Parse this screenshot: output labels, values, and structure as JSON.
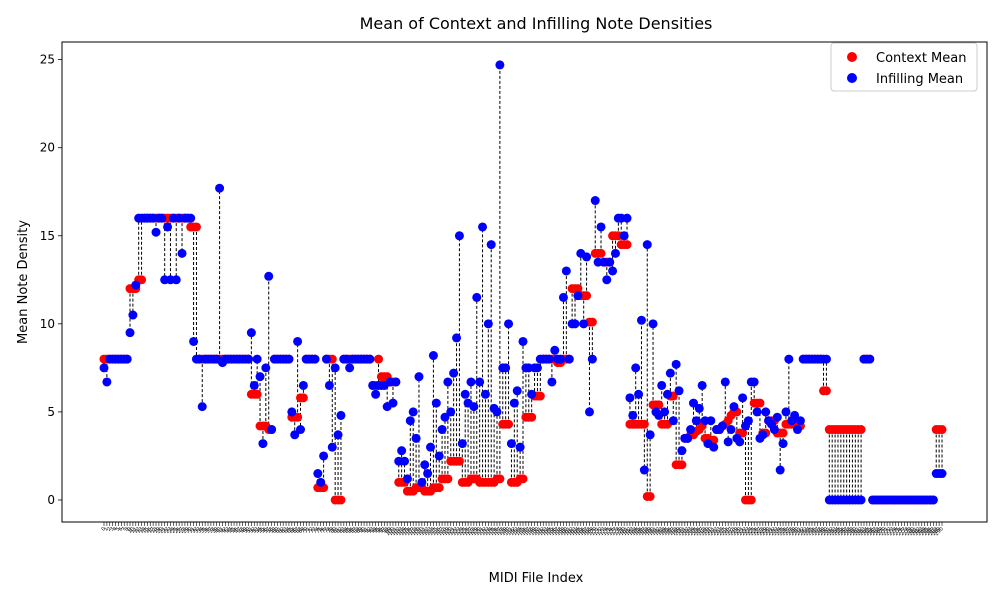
{
  "chart_data": {
    "type": "scatter",
    "title": "Mean of Context and Infilling Note Densities",
    "xlabel": "MIDI File Index",
    "ylabel": "Mean Note Density",
    "ylim": [
      -1.25,
      26.0
    ],
    "yticks": [
      0,
      5,
      10,
      15,
      20,
      25
    ],
    "legend_position": "top-right",
    "colors": {
      "context": "#ff0000",
      "infilling": "#0000ff",
      "connector": "#000000"
    },
    "series": [
      {
        "name": "Context Mean",
        "color": "#ff0000",
        "values": [
          8.0,
          8.0,
          8.0,
          8.0,
          8.0,
          8.0,
          8.0,
          8.0,
          8.0,
          12.0,
          12.0,
          12.0,
          12.5,
          12.5,
          16.0,
          16.0,
          16.0,
          16.0,
          16.0,
          16.0,
          16.0,
          16.0,
          16.0,
          16.0,
          16.0,
          16.0,
          16.0,
          16.0,
          16.0,
          16.0,
          15.5,
          15.5,
          15.5,
          8.0,
          8.0,
          8.0,
          8.0,
          8.0,
          8.0,
          8.0,
          8.0,
          8.0,
          8.0,
          8.0,
          8.0,
          8.0,
          8.0,
          8.0,
          8.0,
          8.0,
          8.0,
          6.0,
          6.0,
          6.0,
          4.2,
          4.2,
          4.2,
          4.0,
          4.0,
          8.0,
          8.0,
          8.0,
          8.0,
          8.0,
          8.0,
          4.7,
          4.7,
          4.7,
          5.8,
          5.8,
          8.0,
          8.0,
          8.0,
          8.0,
          0.7,
          0.7,
          0.7,
          8.0,
          8.0,
          8.0,
          0.0,
          0.0,
          0.0,
          8.0,
          8.0,
          8.0,
          8.0,
          8.0,
          8.0,
          8.0,
          8.0,
          8.0,
          8.0,
          6.5,
          6.5,
          8.0,
          7.0,
          7.0,
          7.0,
          6.7,
          6.7,
          6.7,
          1.0,
          1.0,
          1.0,
          0.5,
          0.5,
          0.5,
          0.7,
          0.7,
          0.7,
          0.5,
          0.5,
          0.5,
          0.7,
          0.7,
          0.7,
          1.2,
          1.2,
          1.2,
          2.2,
          2.2,
          2.2,
          2.2,
          1.0,
          1.0,
          1.0,
          1.2,
          1.2,
          1.2,
          1.0,
          1.0,
          1.0,
          1.0,
          1.0,
          1.0,
          1.2,
          1.2,
          4.3,
          4.3,
          4.3,
          1.0,
          1.0,
          1.0,
          1.2,
          1.2,
          4.7,
          4.7,
          4.7,
          5.9,
          5.9,
          5.9,
          8.0,
          8.0,
          8.0,
          8.0,
          8.0,
          7.8,
          7.8,
          8.0,
          8.0,
          8.0,
          12.0,
          12.0,
          12.0,
          11.6,
          11.6,
          11.6,
          10.1,
          10.1,
          14.0,
          14.0,
          14.0,
          13.5,
          13.5,
          13.5,
          15.0,
          15.0,
          15.0,
          14.5,
          14.5,
          14.5,
          4.3,
          4.3,
          4.3,
          4.3,
          4.3,
          4.3,
          0.2,
          0.2,
          5.4,
          5.4,
          5.4,
          4.3,
          4.3,
          4.3,
          5.9,
          5.9,
          2.0,
          2.0,
          2.0,
          3.5,
          3.5,
          3.7,
          3.7,
          3.9,
          4.0,
          4.2,
          3.5,
          3.5,
          3.4,
          3.4,
          4.0,
          4.0,
          4.2,
          4.3,
          4.5,
          4.8,
          5.0,
          5.0,
          3.8,
          3.8,
          0.0,
          0.0,
          0.0,
          5.5,
          5.5,
          5.5,
          3.8,
          3.8,
          4.5,
          4.5,
          4.5,
          3.8,
          3.8,
          3.8,
          4.3,
          4.3,
          4.3,
          4.3,
          4.2,
          4.2,
          8.0,
          8.0,
          8.0,
          8.0,
          8.0,
          8.0,
          8.0,
          6.2,
          6.2,
          4.0,
          4.0,
          4.0,
          4.0,
          4.0,
          4.0,
          4.0,
          4.0,
          4.0,
          4.0,
          4.0,
          4.0,
          8.0,
          8.0,
          8.0,
          0.0,
          0.0,
          0.0,
          0.0,
          0.0,
          0.0,
          0.0,
          0.0,
          0.0,
          0.0,
          0.0,
          0.0,
          0.0,
          0.0,
          0.0,
          0.0,
          0.0,
          0.0,
          0.0,
          0.0,
          0.0,
          0.0,
          4.0,
          4.0,
          4.0
        ]
      },
      {
        "name": "Infilling Mean",
        "color": "#0000ff",
        "values": [
          7.5,
          6.7,
          8.0,
          8.0,
          8.0,
          8.0,
          8.0,
          8.0,
          8.0,
          9.5,
          10.5,
          12.2,
          16.0,
          16.0,
          16.0,
          16.0,
          16.0,
          16.0,
          15.2,
          16.0,
          16.0,
          12.5,
          15.5,
          12.5,
          16.0,
          12.5,
          16.0,
          14.0,
          16.0,
          16.0,
          16.0,
          9.0,
          8.0,
          8.0,
          5.3,
          8.0,
          8.0,
          8.0,
          8.0,
          8.0,
          17.7,
          7.8,
          8.0,
          8.0,
          8.0,
          8.0,
          8.0,
          8.0,
          8.0,
          8.0,
          8.0,
          9.5,
          6.5,
          8.0,
          7.0,
          3.2,
          7.5,
          12.7,
          4.0,
          8.0,
          8.0,
          8.0,
          8.0,
          8.0,
          8.0,
          5.0,
          3.7,
          9.0,
          4.0,
          6.5,
          8.0,
          8.0,
          8.0,
          8.0,
          1.5,
          1.0,
          2.5,
          8.0,
          6.5,
          3.0,
          7.5,
          3.7,
          4.8,
          8.0,
          8.0,
          7.5,
          8.0,
          8.0,
          8.0,
          8.0,
          8.0,
          8.0,
          8.0,
          6.5,
          6.0,
          6.5,
          6.5,
          6.5,
          5.3,
          6.7,
          5.5,
          6.7,
          2.2,
          2.8,
          2.2,
          1.2,
          4.5,
          5.0,
          3.5,
          7.0,
          1.0,
          2.0,
          1.5,
          3.0,
          8.2,
          5.5,
          2.5,
          4.0,
          4.7,
          6.7,
          5.0,
          7.2,
          9.2,
          15.0,
          3.2,
          6.0,
          5.5,
          6.7,
          5.3,
          11.5,
          6.7,
          15.5,
          6.0,
          10.0,
          14.5,
          5.2,
          5.0,
          24.7,
          7.5,
          7.5,
          10.0,
          3.2,
          5.5,
          6.2,
          3.0,
          9.0,
          7.5,
          7.5,
          6.0,
          7.5,
          7.5,
          8.0,
          8.0,
          8.0,
          8.0,
          6.7,
          8.5,
          8.0,
          8.0,
          11.5,
          13.0,
          8.0,
          10.0,
          10.0,
          11.6,
          14.0,
          10.0,
          13.8,
          5.0,
          8.0,
          17.0,
          13.5,
          15.5,
          13.5,
          12.5,
          13.5,
          13.0,
          14.0,
          16.0,
          16.0,
          15.0,
          16.0,
          5.8,
          4.8,
          7.5,
          6.0,
          10.2,
          1.7,
          14.5,
          3.7,
          10.0,
          5.0,
          4.8,
          6.5,
          5.0,
          6.0,
          7.2,
          4.5,
          7.7,
          6.2,
          2.8,
          3.5,
          3.5,
          4.0,
          5.5,
          4.5,
          5.2,
          6.5,
          4.5,
          3.2,
          4.5,
          3.0,
          4.0,
          4.0,
          4.2,
          6.7,
          3.3,
          4.0,
          5.3,
          3.5,
          3.3,
          5.8,
          4.2,
          4.5,
          6.7,
          6.7,
          5.0,
          3.5,
          3.7,
          5.0,
          4.5,
          4.3,
          4.0,
          4.7,
          1.7,
          3.2,
          5.0,
          8.0,
          4.5,
          4.8,
          4.0,
          4.5,
          8.0,
          8.0,
          8.0,
          8.0,
          8.0,
          8.0,
          8.0,
          8.0,
          8.0,
          0.0,
          0.0,
          0.0,
          0.0,
          0.0,
          0.0,
          0.0,
          0.0,
          0.0,
          0.0,
          0.0,
          0.0,
          8.0,
          8.0,
          8.0,
          0.0,
          0.0,
          0.0,
          0.0,
          0.0,
          0.0,
          0.0,
          0.0,
          0.0,
          0.0,
          0.0,
          0.0,
          0.0,
          0.0,
          0.0,
          0.0,
          0.0,
          0.0,
          0.0,
          0.0,
          0.0,
          0.0,
          1.5,
          1.5,
          1.5
        ]
      }
    ]
  }
}
